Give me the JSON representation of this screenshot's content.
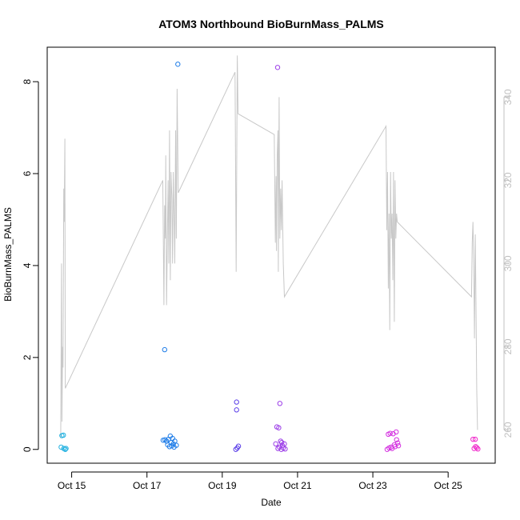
{
  "chart_data": {
    "type": "scatter",
    "title": "ATOM3 Northbound BioBurnMass_PALMS",
    "xlabel": "Date",
    "ylabel": "BioBurnMass_PALMS",
    "x_ticks": [
      {
        "label": "Oct 15",
        "day": 15
      },
      {
        "label": "Oct 17",
        "day": 17
      },
      {
        "label": "Oct 19",
        "day": 19
      },
      {
        "label": "Oct 21",
        "day": 21
      },
      {
        "label": "Oct 23",
        "day": 23
      },
      {
        "label": "Oct 25",
        "day": 25
      }
    ],
    "xlim": [
      14.35,
      26.25
    ],
    "ylim": [
      -0.3,
      8.75
    ],
    "y_ticks": [
      0,
      2,
      4,
      6,
      8
    ],
    "y2lim": [
      252,
      352
    ],
    "y2_ticks": [
      260,
      280,
      300,
      320,
      340
    ],
    "colors": {
      "line": "#c8c8c8",
      "right_axis": "#c0c0c0",
      "frame": "#000000"
    },
    "series": [
      {
        "kind": "points",
        "points": [
          {
            "x": 14.72,
            "y": 0.05,
            "color": "#1fb0e0"
          },
          {
            "x": 14.74,
            "y": 0.3,
            "color": "#1fb0e0"
          },
          {
            "x": 14.78,
            "y": 0.31,
            "color": "#1fb0e0"
          },
          {
            "x": 14.79,
            "y": 0.02,
            "color": "#1fb0e0"
          },
          {
            "x": 14.83,
            "y": 0.0,
            "color": "#1fb0e0"
          },
          {
            "x": 14.85,
            "y": 0.02,
            "color": "#1fb0e0"
          },
          {
            "x": 17.47,
            "y": 2.17,
            "color": "#1f7de8"
          },
          {
            "x": 17.43,
            "y": 0.2,
            "color": "#1f7de8"
          },
          {
            "x": 17.48,
            "y": 0.21,
            "color": "#1f7de8"
          },
          {
            "x": 17.52,
            "y": 0.18,
            "color": "#1f7de8"
          },
          {
            "x": 17.55,
            "y": 0.1,
            "color": "#1f7de8"
          },
          {
            "x": 17.57,
            "y": 0.22,
            "color": "#1f7de8"
          },
          {
            "x": 17.6,
            "y": 0.06,
            "color": "#1f7de8"
          },
          {
            "x": 17.62,
            "y": 0.29,
            "color": "#1f7de8"
          },
          {
            "x": 17.64,
            "y": 0.15,
            "color": "#1f7de8"
          },
          {
            "x": 17.66,
            "y": 0.08,
            "color": "#1f7de8"
          },
          {
            "x": 17.68,
            "y": 0.24,
            "color": "#1f7de8"
          },
          {
            "x": 17.7,
            "y": 0.12,
            "color": "#1f7de8"
          },
          {
            "x": 17.72,
            "y": 0.05,
            "color": "#1f7de8"
          },
          {
            "x": 17.74,
            "y": 0.18,
            "color": "#1f7de8"
          },
          {
            "x": 17.78,
            "y": 0.09,
            "color": "#1f7de8"
          },
          {
            "x": 17.82,
            "y": 8.38,
            "color": "#1f7de8"
          },
          {
            "x": 19.38,
            "y": 1.03,
            "color": "#5a3ee8"
          },
          {
            "x": 19.38,
            "y": 0.86,
            "color": "#5a3ee8"
          },
          {
            "x": 19.36,
            "y": 0.0,
            "color": "#5a3ee8"
          },
          {
            "x": 19.4,
            "y": 0.03,
            "color": "#5a3ee8"
          },
          {
            "x": 19.43,
            "y": 0.07,
            "color": "#5a3ee8"
          },
          {
            "x": 20.47,
            "y": 8.31,
            "color": "#9c3ee8"
          },
          {
            "x": 20.42,
            "y": 0.12,
            "color": "#9c3ee8"
          },
          {
            "x": 20.45,
            "y": 0.49,
            "color": "#9c3ee8"
          },
          {
            "x": 20.48,
            "y": 0.02,
            "color": "#9c3ee8"
          },
          {
            "x": 20.5,
            "y": 0.47,
            "color": "#9c3ee8"
          },
          {
            "x": 20.52,
            "y": 0.05,
            "color": "#9c3ee8"
          },
          {
            "x": 20.53,
            "y": 1.0,
            "color": "#9c3ee8"
          },
          {
            "x": 20.55,
            "y": 0.18,
            "color": "#9c3ee8"
          },
          {
            "x": 20.57,
            "y": 0.0,
            "color": "#9c3ee8"
          },
          {
            "x": 20.58,
            "y": 0.15,
            "color": "#9c3ee8"
          },
          {
            "x": 20.6,
            "y": 0.08,
            "color": "#9c3ee8"
          },
          {
            "x": 20.62,
            "y": 0.03,
            "color": "#9c3ee8"
          },
          {
            "x": 20.65,
            "y": 0.12,
            "color": "#9c3ee8"
          },
          {
            "x": 20.67,
            "y": 0.01,
            "color": "#9c3ee8"
          },
          {
            "x": 23.38,
            "y": 0.0,
            "color": "#d431e0"
          },
          {
            "x": 23.41,
            "y": 0.33,
            "color": "#d431e0"
          },
          {
            "x": 23.43,
            "y": 0.03,
            "color": "#d431e0"
          },
          {
            "x": 23.46,
            "y": 0.35,
            "color": "#d431e0"
          },
          {
            "x": 23.48,
            "y": 0.05,
            "color": "#d431e0"
          },
          {
            "x": 23.51,
            "y": 0.02,
            "color": "#d431e0"
          },
          {
            "x": 23.54,
            "y": 0.34,
            "color": "#d431e0"
          },
          {
            "x": 23.57,
            "y": 0.1,
            "color": "#d431e0"
          },
          {
            "x": 23.59,
            "y": 0.06,
            "color": "#d431e0"
          },
          {
            "x": 23.62,
            "y": 0.38,
            "color": "#d431e0"
          },
          {
            "x": 23.63,
            "y": 0.21,
            "color": "#d431e0"
          },
          {
            "x": 23.66,
            "y": 0.14,
            "color": "#d431e0"
          },
          {
            "x": 23.68,
            "y": 0.08,
            "color": "#d431e0"
          },
          {
            "x": 25.66,
            "y": 0.22,
            "color": "#f02acb"
          },
          {
            "x": 25.72,
            "y": 0.22,
            "color": "#f02acb"
          },
          {
            "x": 25.69,
            "y": 0.02,
            "color": "#f02acb"
          },
          {
            "x": 25.73,
            "y": 0.06,
            "color": "#f02acb"
          },
          {
            "x": 25.76,
            "y": 0.04,
            "color": "#f02acb"
          },
          {
            "x": 25.79,
            "y": 0.01,
            "color": "#f02acb"
          }
        ]
      },
      {
        "kind": "line",
        "axis": "right",
        "points": [
          [
            14.71,
            258
          ],
          [
            14.73,
            300
          ],
          [
            14.74,
            262
          ],
          [
            14.76,
            280
          ],
          [
            14.77,
            275
          ],
          [
            14.79,
            318
          ],
          [
            14.8,
            310
          ],
          [
            14.82,
            330
          ],
          [
            14.83,
            270
          ],
          [
            17.42,
            320
          ],
          [
            17.45,
            290
          ],
          [
            17.47,
            314
          ],
          [
            17.49,
            306
          ],
          [
            17.5,
            326
          ],
          [
            17.52,
            290
          ],
          [
            17.54,
            304
          ],
          [
            17.56,
            320
          ],
          [
            17.58,
            300
          ],
          [
            17.6,
            332
          ],
          [
            17.62,
            296
          ],
          [
            17.64,
            322
          ],
          [
            17.66,
            316
          ],
          [
            17.68,
            300
          ],
          [
            17.7,
            322
          ],
          [
            17.72,
            312
          ],
          [
            17.74,
            300
          ],
          [
            17.76,
            332
          ],
          [
            17.78,
            306
          ],
          [
            17.8,
            342
          ],
          [
            17.83,
            317
          ],
          [
            19.34,
            346
          ],
          [
            19.37,
            298
          ],
          [
            19.4,
            350
          ],
          [
            19.42,
            336
          ],
          [
            20.38,
            331
          ],
          [
            20.41,
            305
          ],
          [
            20.43,
            321
          ],
          [
            20.44,
            303
          ],
          [
            20.46,
            326
          ],
          [
            20.48,
            332
          ],
          [
            20.49,
            298
          ],
          [
            20.51,
            340
          ],
          [
            20.53,
            306
          ],
          [
            20.55,
            318
          ],
          [
            20.57,
            308
          ],
          [
            20.59,
            320
          ],
          [
            20.62,
            300
          ],
          [
            20.65,
            292
          ],
          [
            23.35,
            333
          ],
          [
            23.37,
            308
          ],
          [
            23.39,
            322
          ],
          [
            23.41,
            294
          ],
          [
            23.43,
            312
          ],
          [
            23.45,
            284
          ],
          [
            23.47,
            322
          ],
          [
            23.49,
            306
          ],
          [
            23.51,
            312
          ],
          [
            23.53,
            296
          ],
          [
            23.55,
            322
          ],
          [
            23.57,
            286
          ],
          [
            23.59,
            320
          ],
          [
            23.61,
            306
          ],
          [
            23.63,
            312
          ],
          [
            23.65,
            310
          ],
          [
            25.62,
            292
          ],
          [
            25.64,
            305
          ],
          [
            25.66,
            310
          ],
          [
            25.68,
            300
          ],
          [
            25.7,
            282
          ],
          [
            25.72,
            307
          ],
          [
            25.74,
            290
          ],
          [
            25.76,
            270
          ],
          [
            25.78,
            260
          ]
        ]
      }
    ]
  }
}
